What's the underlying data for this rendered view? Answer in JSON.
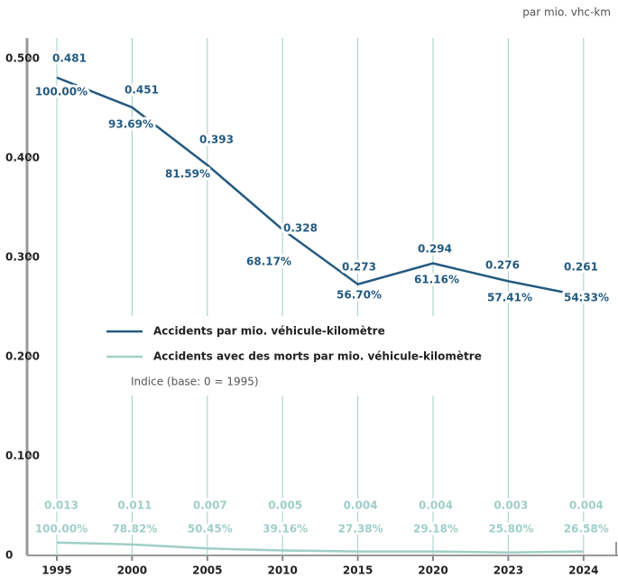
{
  "chart_data": {
    "type": "line",
    "unit_note": "par mio. vhc-km",
    "categories": [
      "1995",
      "2000",
      "2005",
      "2010",
      "2015",
      "2020",
      "2023",
      "2024"
    ],
    "series": [
      {
        "name": "Accidents par mio. véhicule-kilomètre",
        "color": "#245a80",
        "values": [
          0.481,
          0.451,
          0.393,
          0.328,
          0.273,
          0.294,
          0.276,
          0.261
        ],
        "index_labels": [
          "100.00%",
          "93.69%",
          "81.59%",
          "68.17%",
          "56.70%",
          "61.16%",
          "57.41%",
          "54.33%"
        ]
      },
      {
        "name": "Accidents avec des morts par mio. véhicule-kilomètre",
        "color": "#9fcfc6",
        "values": [
          0.013,
          0.011,
          0.007,
          0.005,
          0.004,
          0.004,
          0.003,
          0.004
        ],
        "index_labels": [
          "100.00%",
          "78.82%",
          "50.45%",
          "39.16%",
          "27.38%",
          "29.18%",
          "25.80%",
          "26.58%"
        ]
      }
    ],
    "legend_note": "Indice (base: 0 = 1995)",
    "ylim": [
      0,
      0.5
    ],
    "yticks": [
      0,
      {
        "value": 0.1,
        "label": "0.100"
      },
      {
        "value": 0.2,
        "label": "0.200"
      },
      {
        "value": 0.3,
        "label": "0.300"
      },
      {
        "value": 0.4,
        "label": "0.400"
      },
      {
        "value": 0.5,
        "label": "0.500"
      }
    ],
    "grid": true
  }
}
